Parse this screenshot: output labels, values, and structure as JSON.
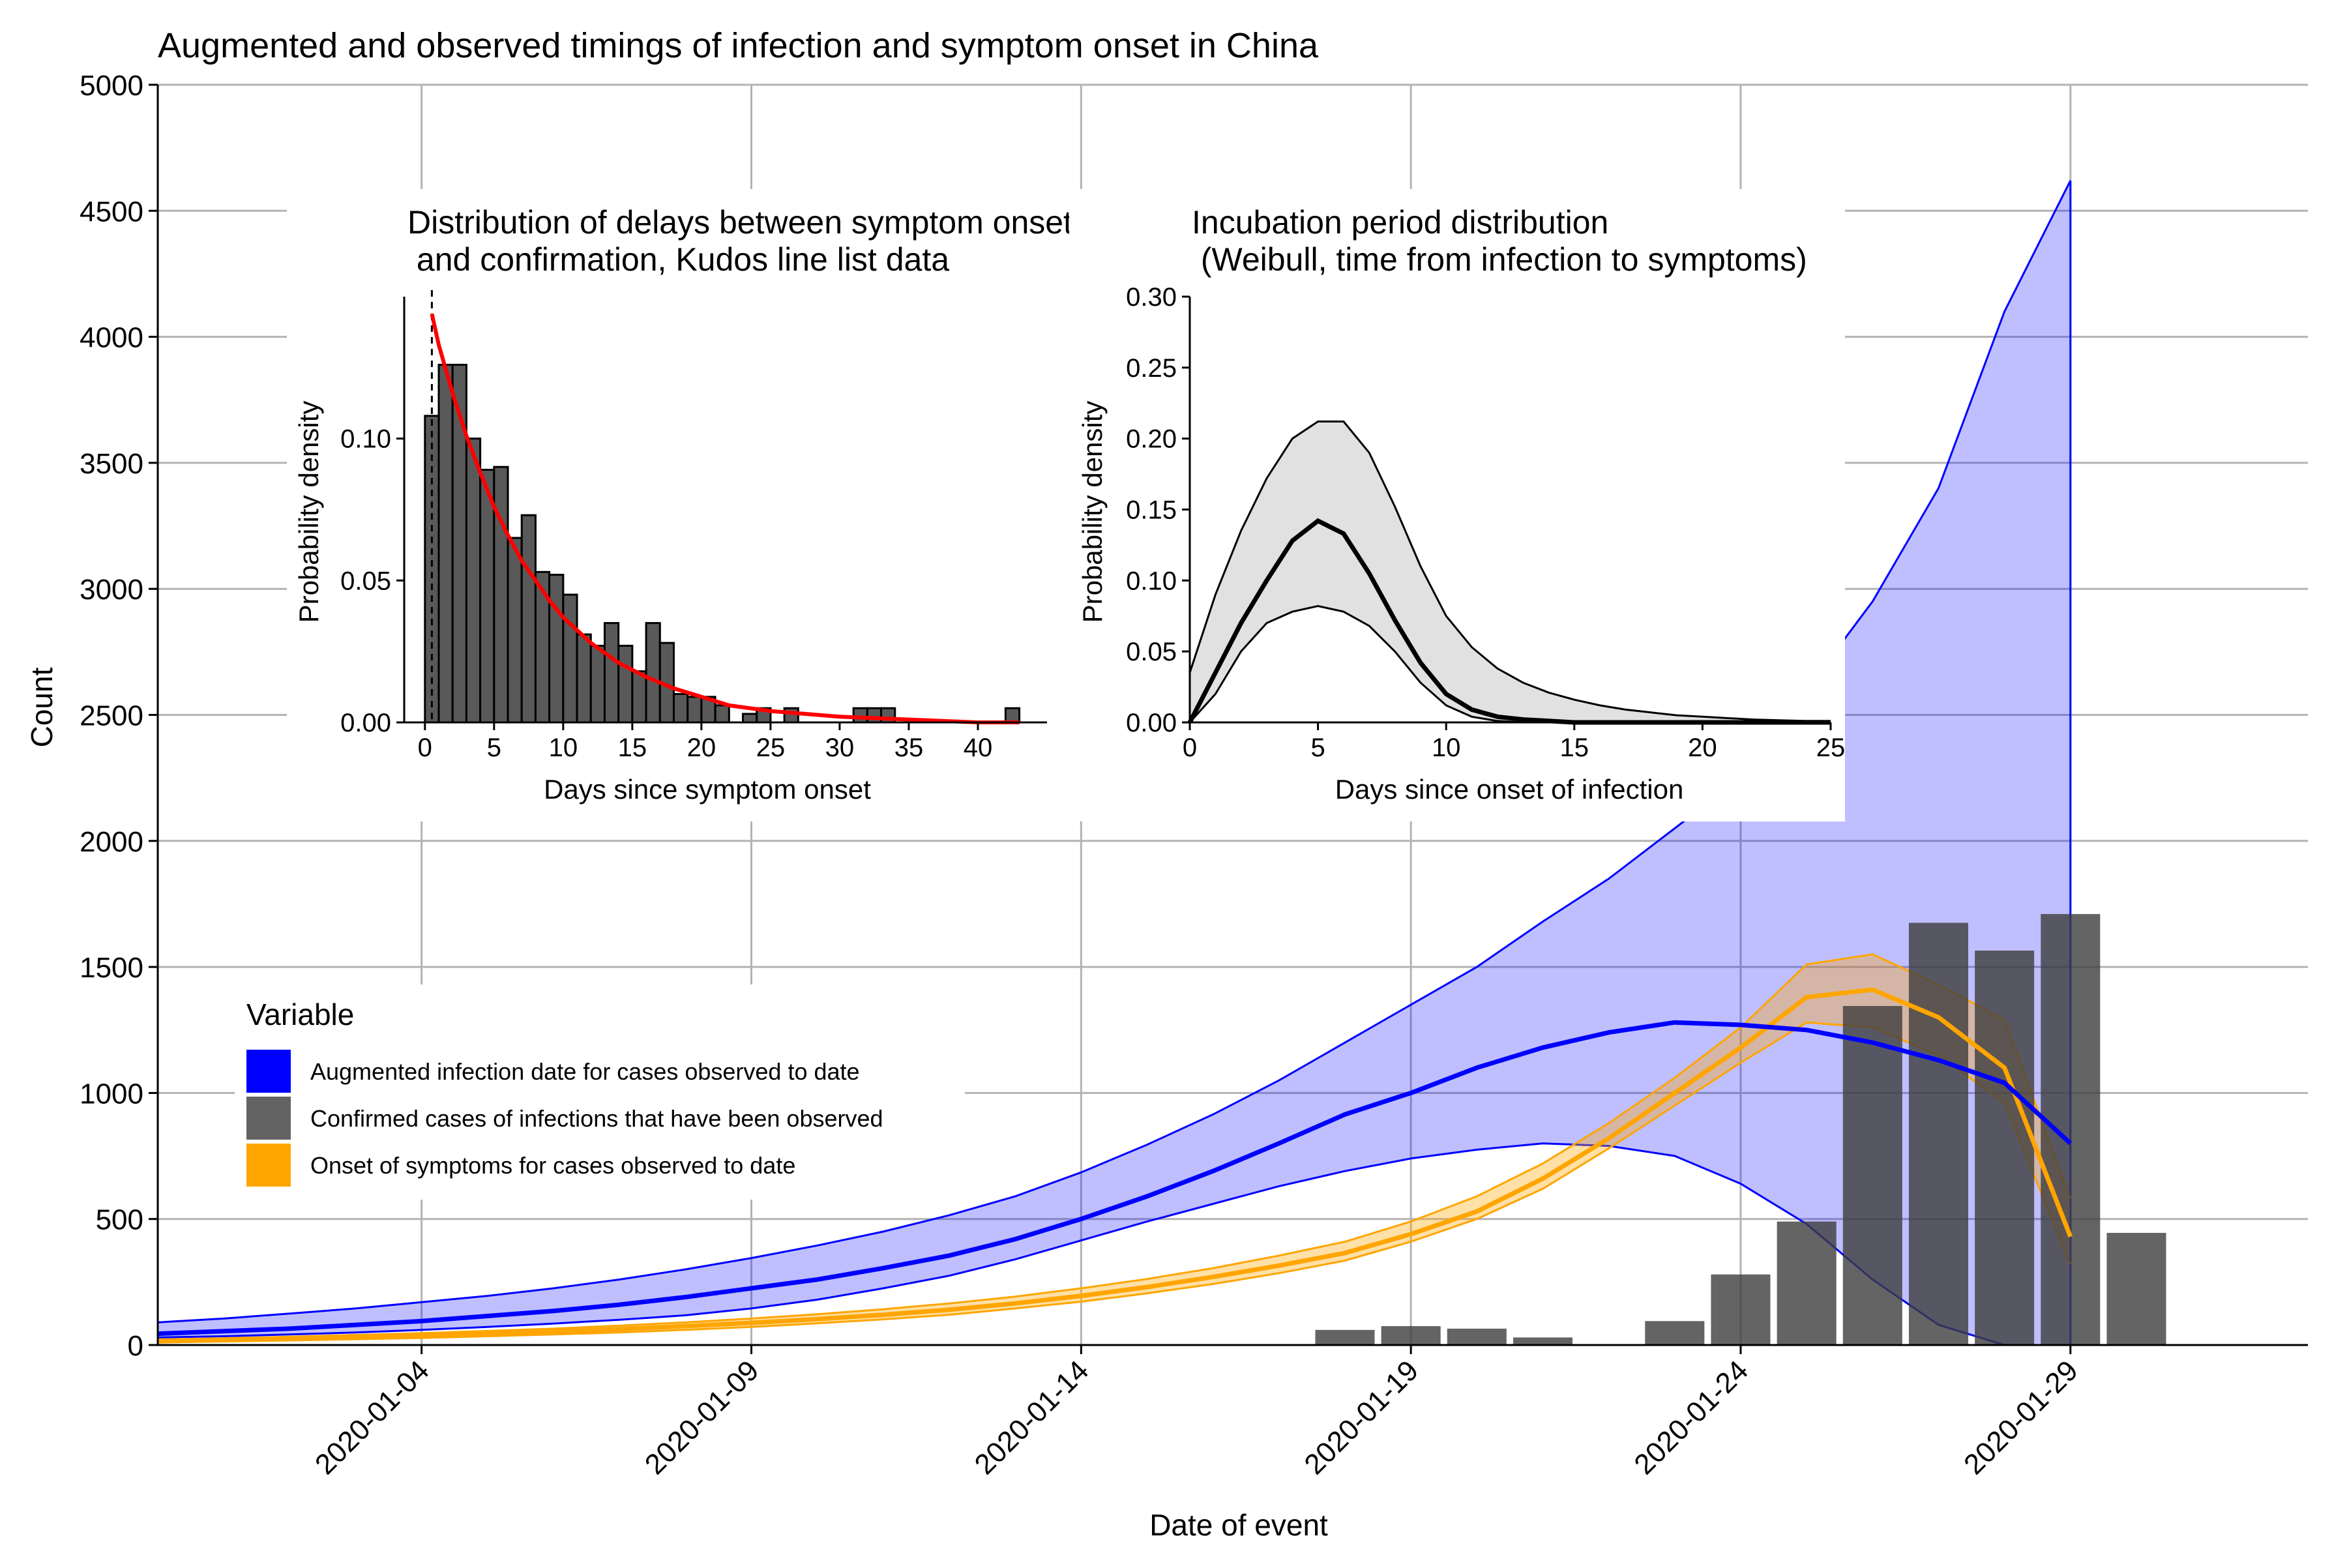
{
  "chart_data": [
    {
      "type": "area",
      "title": "Augmented and observed timings of infection and symptom onset in China",
      "xlabel": "Date of event",
      "ylabel": "Count",
      "ylim": [
        0,
        5000
      ],
      "yticks": [
        0,
        500,
        1000,
        1500,
        2000,
        2500,
        3000,
        3500,
        4000,
        4500,
        5000
      ],
      "xticks": [
        "2020-01-04",
        "2020-01-09",
        "2020-01-14",
        "2020-01-19",
        "2020-01-24",
        "2020-01-29"
      ],
      "x_dates": [
        "2019-12-31",
        "2020-01-01",
        "2020-01-02",
        "2020-01-03",
        "2020-01-04",
        "2020-01-05",
        "2020-01-06",
        "2020-01-07",
        "2020-01-08",
        "2020-01-09",
        "2020-01-10",
        "2020-01-11",
        "2020-01-12",
        "2020-01-13",
        "2020-01-14",
        "2020-01-15",
        "2020-01-16",
        "2020-01-17",
        "2020-01-18",
        "2020-01-19",
        "2020-01-20",
        "2020-01-21",
        "2020-01-22",
        "2020-01-23",
        "2020-01-24",
        "2020-01-25",
        "2020-01-26",
        "2020-01-27",
        "2020-01-28",
        "2020-01-29"
      ],
      "grid": true,
      "legend": {
        "title": "Variable",
        "position": "left-middle",
        "items": [
          {
            "label": "Augmented infection date for cases observed to date",
            "color": "#0000ff"
          },
          {
            "label": "Confirmed cases of infections that have been observed",
            "color": "#636363"
          },
          {
            "label": "Onset of symptoms for cases observed to date",
            "color": "#ffa500"
          }
        ]
      },
      "series": [
        {
          "name": "Augmented infection date for cases observed to date",
          "kind": "ribbon-line",
          "color": "#0000ff",
          "median": [
            45,
            55,
            65,
            80,
            95,
            115,
            135,
            160,
            190,
            225,
            260,
            305,
            355,
            420,
            500,
            590,
            690,
            800,
            915,
            1000,
            1100,
            1180,
            1240,
            1280,
            1270,
            1250,
            1200,
            1130,
            1040,
            800
          ],
          "lower": [
            30,
            35,
            42,
            50,
            60,
            72,
            85,
            100,
            118,
            145,
            180,
            225,
            275,
            340,
            415,
            490,
            560,
            630,
            690,
            740,
            775,
            800,
            790,
            750,
            640,
            480,
            260,
            80,
            -40,
            -40
          ],
          "upper": [
            90,
            105,
            125,
            145,
            170,
            195,
            225,
            260,
            300,
            345,
            395,
            450,
            515,
            590,
            685,
            795,
            915,
            1050,
            1200,
            1350,
            1500,
            1680,
            1850,
            2050,
            2250,
            2600,
            2950,
            3400,
            4100,
            4620
          ]
        },
        {
          "name": "Onset of symptoms for cases observed to date",
          "kind": "ribbon-line",
          "color": "#ffa500",
          "median": [
            15,
            20,
            25,
            30,
            37,
            45,
            53,
            63,
            75,
            88,
            103,
            120,
            140,
            165,
            195,
            230,
            270,
            315,
            365,
            440,
            530,
            660,
            820,
            1000,
            1180,
            1380,
            1410,
            1300,
            1100,
            430
          ],
          "lower": [
            10,
            14,
            18,
            23,
            28,
            35,
            42,
            50,
            60,
            72,
            86,
            102,
            120,
            145,
            172,
            205,
            242,
            285,
            335,
            410,
            500,
            620,
            780,
            950,
            1120,
            1280,
            1260,
            1150,
            960,
            320
          ],
          "upper": [
            22,
            27,
            33,
            40,
            47,
            56,
            65,
            77,
            90,
            105,
            122,
            142,
            165,
            192,
            225,
            262,
            305,
            355,
            410,
            490,
            590,
            720,
            880,
            1060,
            1260,
            1510,
            1550,
            1430,
            1290,
            580
          ]
        },
        {
          "name": "Confirmed cases of infections that have been observed",
          "kind": "bar",
          "color": "#636363",
          "dates": [
            "2020-01-18",
            "2020-01-19",
            "2020-01-20",
            "2020-01-21",
            "2020-01-23",
            "2020-01-24",
            "2020-01-25",
            "2020-01-26",
            "2020-01-27",
            "2020-01-28",
            "2020-01-29",
            "2020-01-30"
          ],
          "values": [
            60,
            75,
            65,
            30,
            95,
            280,
            490,
            1345,
            1675,
            1565,
            1710,
            445
          ]
        }
      ]
    },
    {
      "type": "bar",
      "title": "Distribution of delays between symptom onset and confirmation, Kudos line list data",
      "title_lines": [
        "Distribution of delays between symptom onset",
        " and confirmation, Kudos line list data"
      ],
      "xlabel": "Days since symptom onset",
      "ylabel": "Probability density",
      "xlim": [
        -1.5,
        45
      ],
      "ylim": [
        0,
        0.15
      ],
      "xticks": [
        0,
        5,
        10,
        15,
        20,
        25,
        30,
        35,
        40
      ],
      "yticks": [
        0.0,
        0.05,
        0.1
      ],
      "ytick_labels": [
        "0.00",
        "0.05",
        "0.10"
      ],
      "histogram": {
        "bin_width": 1,
        "bin_starts": [
          0,
          1,
          2,
          3,
          4,
          5,
          6,
          7,
          8,
          9,
          10,
          11,
          12,
          13,
          14,
          15,
          16,
          17,
          18,
          19,
          20,
          21,
          22,
          23,
          24,
          25,
          26,
          27,
          28,
          29,
          30,
          31,
          32,
          33,
          34,
          35,
          36,
          37,
          38,
          39,
          40,
          41,
          42
        ],
        "density": [
          0.108,
          0.126,
          0.126,
          0.1,
          0.089,
          0.09,
          0.065,
          0.073,
          0.053,
          0.052,
          0.045,
          0.031,
          0.027,
          0.035,
          0.027,
          0.018,
          0.035,
          0.028,
          0.01,
          0.009,
          0.009,
          0.006,
          0.0,
          0.003,
          0.005,
          0.0,
          0.005,
          0.0,
          0.0,
          0.0,
          0.0,
          0.005,
          0.005,
          0.005,
          0.0,
          0.0,
          0.0,
          0.0,
          0.0,
          0.0,
          0.0,
          0.0,
          0.005
        ]
      },
      "fit_curve": {
        "color": "#ff0000",
        "x": [
          0.5,
          1,
          2,
          3,
          4,
          5,
          6,
          7,
          8,
          9,
          10,
          12,
          14,
          16,
          18,
          20,
          22,
          25,
          30,
          35,
          40,
          43
        ],
        "y": [
          0.144,
          0.133,
          0.116,
          0.101,
          0.088,
          0.076,
          0.066,
          0.057,
          0.05,
          0.043,
          0.037,
          0.028,
          0.021,
          0.016,
          0.012,
          0.009,
          0.006,
          0.004,
          0.002,
          0.001,
          0.0,
          0.0
        ]
      },
      "vline_x": 0.5
    },
    {
      "type": "area",
      "title": "Incubation period distribution (Weibull, time from infection to symptoms)",
      "title_lines": [
        "Incubation period distribution",
        " (Weibull, time from infection to symptoms)"
      ],
      "xlabel": "Days since onset of infection",
      "ylabel": "Probability density",
      "xlim": [
        0,
        25
      ],
      "ylim": [
        0,
        0.3
      ],
      "xticks": [
        0,
        5,
        10,
        15,
        20,
        25
      ],
      "yticks": [
        0.0,
        0.05,
        0.1,
        0.15,
        0.2,
        0.25,
        0.3
      ],
      "ytick_labels": [
        "0.00",
        "0.05",
        "0.10",
        "0.15",
        "0.20",
        "0.25",
        "0.30"
      ],
      "x": [
        0,
        1,
        2,
        3,
        4,
        5,
        6,
        7,
        8,
        9,
        10,
        11,
        12,
        13,
        14,
        15,
        16,
        17,
        18,
        19,
        20,
        21,
        22,
        23,
        24,
        25
      ],
      "median": [
        0.0,
        0.035,
        0.07,
        0.1,
        0.128,
        0.142,
        0.133,
        0.105,
        0.072,
        0.042,
        0.02,
        0.009,
        0.004,
        0.002,
        0.001,
        0.0,
        0.0,
        0.0,
        0.0,
        0.0,
        0.0,
        0.0,
        0.0,
        0.0,
        0.0,
        0.0
      ],
      "lower": [
        0.0,
        0.02,
        0.05,
        0.07,
        0.078,
        0.082,
        0.078,
        0.068,
        0.05,
        0.028,
        0.012,
        0.004,
        0.001,
        0.0,
        0.0,
        0.0,
        0.0,
        0.0,
        0.0,
        0.0,
        0.0,
        0.0,
        0.0,
        0.0,
        0.0,
        0.0
      ],
      "upper": [
        0.035,
        0.09,
        0.135,
        0.172,
        0.2,
        0.212,
        0.212,
        0.19,
        0.152,
        0.11,
        0.075,
        0.053,
        0.038,
        0.028,
        0.021,
        0.016,
        0.012,
        0.009,
        0.007,
        0.005,
        0.004,
        0.003,
        0.002,
        0.0015,
        0.001,
        0.001
      ]
    }
  ]
}
